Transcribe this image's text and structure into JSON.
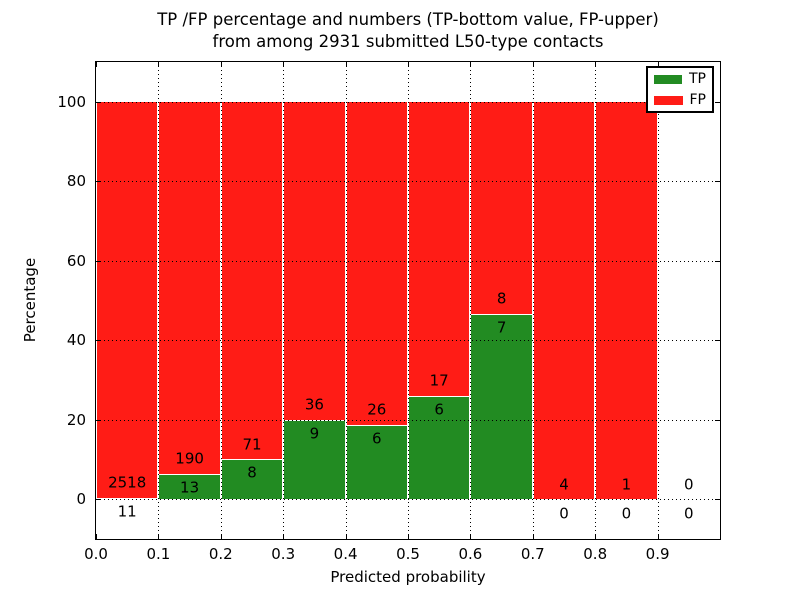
{
  "chart_data": {
    "type": "bar",
    "subtype": "stacked-100-percent",
    "title": "TP /FP percentage and numbers (TP-bottom value, FP-upper) from among 2931 submitted L50-type contacts",
    "title_lines": [
      "TP /FP percentage and numbers (TP-bottom value, FP-upper)",
      "from among 2931 submitted L50-type contacts"
    ],
    "xlabel": "Predicted probability",
    "ylabel": "Percentage",
    "total_contacts": 2931,
    "xlim": [
      0.0,
      1.0
    ],
    "ylim": [
      -10,
      110
    ],
    "xticks": [
      0.0,
      0.1,
      0.2,
      0.3,
      0.4,
      0.5,
      0.6,
      0.7,
      0.8,
      0.9
    ],
    "xtick_labels": [
      "0.0",
      "0.1",
      "0.2",
      "0.3",
      "0.4",
      "0.5",
      "0.6",
      "0.7",
      "0.8",
      "0.9"
    ],
    "yticks": [
      0,
      20,
      40,
      60,
      80,
      100
    ],
    "ytick_labels": [
      "0",
      "20",
      "40",
      "60",
      "80",
      "100"
    ],
    "grid": true,
    "colors": {
      "tp": "#228b22",
      "fp": "#ff1c16"
    },
    "legend": {
      "position": "upper-right",
      "entries": [
        {
          "label": "TP",
          "color": "#228b22"
        },
        {
          "label": "FP",
          "color": "#ff1c16"
        }
      ]
    },
    "bins": [
      {
        "x0": 0.0,
        "x1": 0.1,
        "tp": 11,
        "fp": 2518
      },
      {
        "x0": 0.1,
        "x1": 0.2,
        "tp": 13,
        "fp": 190
      },
      {
        "x0": 0.2,
        "x1": 0.3,
        "tp": 8,
        "fp": 71
      },
      {
        "x0": 0.3,
        "x1": 0.4,
        "tp": 9,
        "fp": 36
      },
      {
        "x0": 0.4,
        "x1": 0.5,
        "tp": 6,
        "fp": 26
      },
      {
        "x0": 0.5,
        "x1": 0.6,
        "tp": 6,
        "fp": 17
      },
      {
        "x0": 0.6,
        "x1": 0.7,
        "tp": 7,
        "fp": 8
      },
      {
        "x0": 0.7,
        "x1": 0.8,
        "tp": 0,
        "fp": 4
      },
      {
        "x0": 0.8,
        "x1": 0.9,
        "tp": 0,
        "fp": 1
      },
      {
        "x0": 0.9,
        "x1": 1.0,
        "tp": 0,
        "fp": 0
      }
    ],
    "tp_percent_approx": [
      0.4,
      6.4,
      10.1,
      20.0,
      18.8,
      26.1,
      46.7,
      0.0,
      0.0,
      0.0
    ]
  }
}
